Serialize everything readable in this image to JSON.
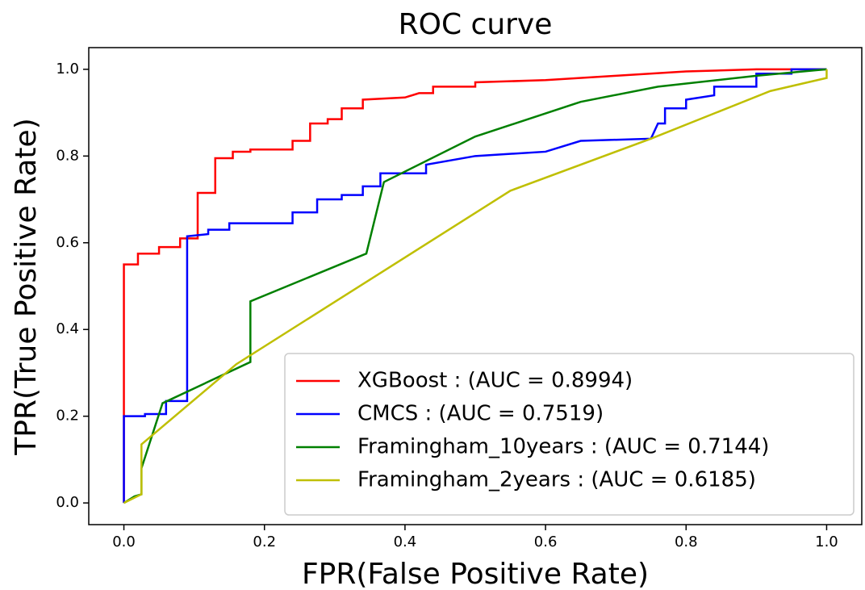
{
  "chart_data": {
    "type": "line",
    "title": "ROC curve",
    "xlabel": "FPR(False Positive Rate)",
    "ylabel": "TPR(True Positive Rate)",
    "xlim": [
      -0.05,
      1.05
    ],
    "ylim": [
      -0.05,
      1.05
    ],
    "xticks": [
      {
        "value": 0,
        "label": "0.0"
      },
      0.2,
      0.4,
      0.6,
      0.8,
      {
        "value": 1,
        "label": "1.0"
      }
    ],
    "yticks": [
      {
        "value": 0,
        "label": "0.0"
      },
      0.2,
      0.4,
      0.6,
      0.8,
      {
        "value": 1,
        "label": "1.0"
      }
    ],
    "legend": "lower right",
    "series": [
      {
        "name": "XGBoost : (AUC = 0.8994)",
        "color": "#ff0000",
        "x": [
          0,
          0,
          0.02,
          0.02,
          0.05,
          0.05,
          0.08,
          0.08,
          0.105,
          0.105,
          0.13,
          0.13,
          0.155,
          0.155,
          0.18,
          0.18,
          0.24,
          0.24,
          0.265,
          0.265,
          0.29,
          0.29,
          0.31,
          0.31,
          0.34,
          0.34,
          0.4,
          0.42,
          0.44,
          0.44,
          0.5,
          0.5,
          0.6,
          0.7,
          0.8,
          0.9,
          1
        ],
        "values": [
          0,
          0.55,
          0.55,
          0.575,
          0.575,
          0.59,
          0.59,
          0.61,
          0.61,
          0.715,
          0.715,
          0.795,
          0.795,
          0.81,
          0.81,
          0.815,
          0.815,
          0.835,
          0.835,
          0.875,
          0.875,
          0.885,
          0.885,
          0.91,
          0.91,
          0.93,
          0.935,
          0.945,
          0.945,
          0.96,
          0.96,
          0.97,
          0.975,
          0.985,
          0.995,
          1,
          1
        ]
      },
      {
        "name": "CMCS : (AUC = 0.7519)",
        "color": "#0000ff",
        "x": [
          0,
          0,
          0.03,
          0.03,
          0.06,
          0.06,
          0.09,
          0.09,
          0.12,
          0.12,
          0.15,
          0.15,
          0.24,
          0.24,
          0.275,
          0.275,
          0.31,
          0.31,
          0.34,
          0.34,
          0.365,
          0.365,
          0.43,
          0.43,
          0.5,
          0.6,
          0.65,
          0.75,
          0.76,
          0.77,
          0.77,
          0.8,
          0.8,
          0.84,
          0.84,
          0.9,
          0.9,
          0.95,
          0.95,
          1
        ],
        "values": [
          0,
          0.2,
          0.2,
          0.205,
          0.205,
          0.235,
          0.235,
          0.615,
          0.62,
          0.63,
          0.63,
          0.645,
          0.645,
          0.67,
          0.67,
          0.7,
          0.7,
          0.71,
          0.71,
          0.73,
          0.73,
          0.76,
          0.76,
          0.78,
          0.8,
          0.81,
          0.835,
          0.84,
          0.875,
          0.875,
          0.91,
          0.91,
          0.93,
          0.94,
          0.96,
          0.96,
          0.99,
          0.99,
          1,
          1
        ]
      },
      {
        "name": "Framingham_10years : (AUC = 0.7144)",
        "color": "#008000",
        "x": [
          0,
          0.015,
          0.025,
          0.025,
          0.055,
          0.18,
          0.18,
          0.345,
          0.37,
          0.5,
          0.65,
          0.76,
          0.9,
          1
        ],
        "values": [
          0,
          0.015,
          0.02,
          0.08,
          0.23,
          0.325,
          0.465,
          0.575,
          0.74,
          0.845,
          0.925,
          0.96,
          0.985,
          1
        ]
      },
      {
        "name": "Framingham_2years : (AUC = 0.6185)",
        "color": "#bfbf00",
        "x": [
          0,
          0.025,
          0.025,
          0.16,
          0.55,
          0.75,
          0.92,
          1,
          1
        ],
        "values": [
          0,
          0.02,
          0.135,
          0.32,
          0.72,
          0.84,
          0.95,
          0.98,
          1
        ]
      }
    ]
  }
}
